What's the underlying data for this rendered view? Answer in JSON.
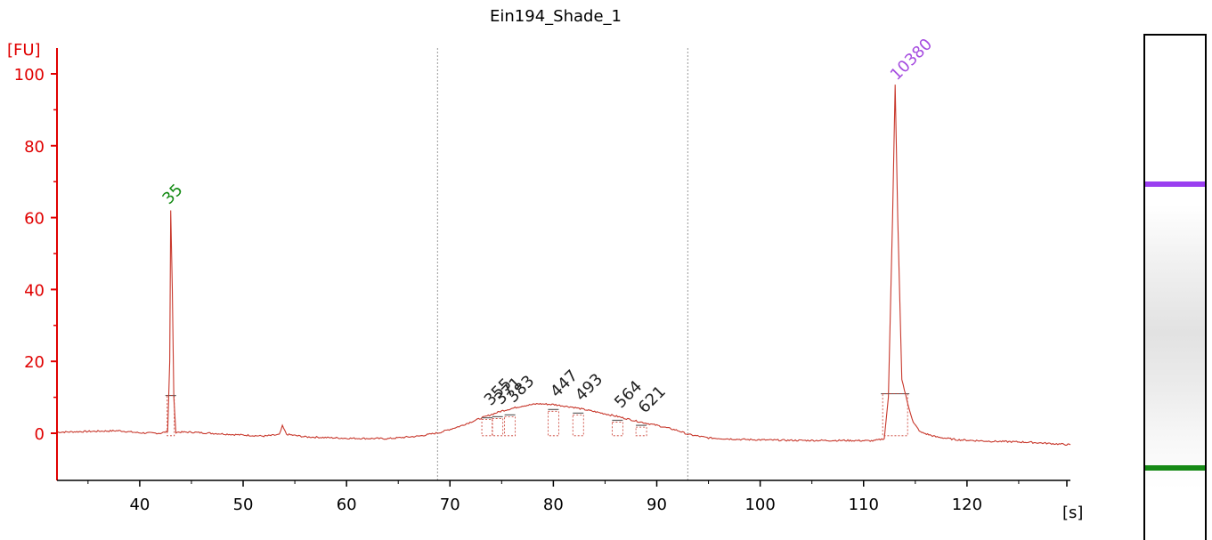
{
  "chart_data": {
    "type": "line",
    "title": "Ein194_Shade_1",
    "ylabel": "[FU]",
    "xlabel": "[s]",
    "xlim": [
      32,
      130
    ],
    "ylim": [
      -13,
      107
    ],
    "x_ticks": [
      "40",
      "50",
      "60",
      "70",
      "80",
      "90",
      "100",
      "110",
      "120"
    ],
    "y_ticks": [
      "0",
      "20",
      "40",
      "60",
      "80",
      "100"
    ],
    "region_bounds_x": [
      68.8,
      93.0
    ],
    "baseline_points": [
      [
        32,
        0.3
      ],
      [
        35,
        0.5
      ],
      [
        38,
        0.7
      ],
      [
        40,
        0.1
      ],
      [
        42,
        0.0
      ],
      [
        42.7,
        0.5
      ],
      [
        42.9,
        20
      ],
      [
        43.0,
        62
      ],
      [
        43.15,
        40
      ],
      [
        43.3,
        10
      ],
      [
        43.5,
        0.3
      ],
      [
        45,
        0.3
      ],
      [
        50,
        -0.5
      ],
      [
        52,
        -0.8
      ],
      [
        53.5,
        -0.4
      ],
      [
        53.8,
        2.0
      ],
      [
        54.2,
        -0.3
      ],
      [
        56,
        -1.0
      ],
      [
        60,
        -1.4
      ],
      [
        64,
        -1.5
      ],
      [
        67,
        -0.8
      ],
      [
        69,
        0.2
      ],
      [
        71,
        2.0
      ],
      [
        73,
        4.2
      ],
      [
        75,
        6.2
      ],
      [
        77,
        7.6
      ],
      [
        78.5,
        8.2
      ],
      [
        80,
        8.0
      ],
      [
        82,
        7.2
      ],
      [
        84,
        6.0
      ],
      [
        86,
        4.8
      ],
      [
        88,
        3.4
      ],
      [
        90,
        2.2
      ],
      [
        92,
        0.8
      ],
      [
        93,
        -0.3
      ],
      [
        95,
        -1.3
      ],
      [
        98,
        -1.7
      ],
      [
        101,
        -1.9
      ],
      [
        104,
        -2.0
      ],
      [
        108,
        -2.0
      ],
      [
        111,
        -2.1
      ],
      [
        112,
        -1.5
      ],
      [
        112.4,
        10
      ],
      [
        112.8,
        60
      ],
      [
        113.05,
        97
      ],
      [
        113.3,
        60
      ],
      [
        113.7,
        15
      ],
      [
        114.2,
        9
      ],
      [
        114.8,
        3
      ],
      [
        115.5,
        0.3
      ],
      [
        117,
        -1.0
      ],
      [
        119,
        -1.8
      ],
      [
        122,
        -2.2
      ],
      [
        126,
        -2.5
      ],
      [
        130,
        -3.2
      ]
    ],
    "peaks": [
      {
        "label": "35",
        "x": 43.0,
        "y": 62,
        "color": "#138a13"
      },
      {
        "label": "355",
        "x": 73.6,
        "y": 5.5,
        "color": "#222222"
      },
      {
        "label": "371",
        "x": 74.6,
        "y": 5.8,
        "color": "#222222"
      },
      {
        "label": "383",
        "x": 75.8,
        "y": 6.3,
        "color": "#222222"
      },
      {
        "label": "447",
        "x": 80.0,
        "y": 7.8,
        "color": "#222222"
      },
      {
        "label": "493",
        "x": 82.4,
        "y": 6.8,
        "color": "#222222"
      },
      {
        "label": "564",
        "x": 86.2,
        "y": 4.8,
        "color": "#222222"
      },
      {
        "label": "621",
        "x": 88.5,
        "y": 3.4,
        "color": "#222222"
      },
      {
        "label": "10380",
        "x": 113.05,
        "y": 97,
        "color": "#a64de0"
      }
    ],
    "colors": {
      "axis": "#e00000",
      "trace": "#c8382c",
      "marker_line": "#606060",
      "region_line": "#999999",
      "gel_upper_band": "#9a3ff0",
      "gel_lower_band": "#168a16"
    }
  }
}
